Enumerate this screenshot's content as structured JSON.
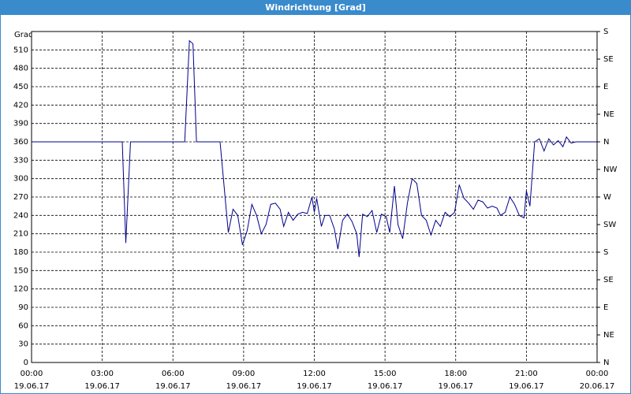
{
  "chart_data": {
    "type": "line",
    "title": "Windrichtung [Grad]",
    "y_label": "Grad",
    "x": [
      0,
      3.85,
      4.0,
      4.2,
      6.5,
      6.7,
      6.85,
      7.0,
      8.0,
      8.35,
      8.55,
      8.75,
      8.95,
      9.15,
      9.35,
      9.55,
      9.75,
      9.95,
      10.15,
      10.35,
      10.55,
      10.7,
      10.9,
      11.1,
      11.3,
      11.5,
      11.7,
      11.9,
      12.0,
      12.1,
      12.3,
      12.45,
      12.65,
      12.85,
      13.0,
      13.2,
      13.4,
      13.6,
      13.8,
      13.9,
      14.05,
      14.25,
      14.45,
      14.65,
      14.85,
      15.05,
      15.2,
      15.4,
      15.55,
      15.75,
      15.95,
      16.15,
      16.35,
      16.55,
      16.75,
      16.95,
      17.15,
      17.35,
      17.55,
      17.75,
      17.95,
      18.15,
      18.35,
      18.55,
      18.75,
      18.95,
      19.15,
      19.35,
      19.55,
      19.75,
      19.9,
      20.1,
      20.3,
      20.5,
      20.7,
      20.9,
      21.0,
      21.15,
      21.35,
      21.55,
      21.75,
      21.95,
      22.15,
      22.35,
      22.55,
      22.7,
      22.9,
      23.1,
      24
    ],
    "series": [
      {
        "name": "Windrichtung",
        "color": "#00008b",
        "values": [
          360,
          360,
          195,
          360,
          360,
          525,
          520,
          360,
          360,
          212,
          250,
          240,
          192,
          215,
          258,
          240,
          210,
          225,
          258,
          260,
          250,
          222,
          245,
          232,
          242,
          245,
          243,
          270,
          245,
          268,
          222,
          240,
          240,
          218,
          185,
          232,
          242,
          230,
          210,
          172,
          242,
          238,
          248,
          212,
          242,
          238,
          212,
          288,
          225,
          202,
          260,
          300,
          292,
          240,
          232,
          208,
          232,
          222,
          245,
          238,
          245,
          290,
          268,
          260,
          250,
          265,
          262,
          252,
          255,
          252,
          240,
          245,
          270,
          258,
          240,
          236,
          280,
          255,
          360,
          365,
          345,
          365,
          355,
          362,
          352,
          368,
          358,
          360,
          360
        ]
      }
    ],
    "xlim": [
      0,
      24
    ],
    "xticks": [
      {
        "value": 0,
        "label": "00:00"
      },
      {
        "value": 3,
        "label": "03:00"
      },
      {
        "value": 6,
        "label": "06:00"
      },
      {
        "value": 9,
        "label": "09:00"
      },
      {
        "value": 12,
        "label": "12:00"
      },
      {
        "value": 15,
        "label": "15:00"
      },
      {
        "value": 18,
        "label": "18:00"
      },
      {
        "value": 21,
        "label": "21:00"
      },
      {
        "value": 24,
        "label": "00:00"
      }
    ],
    "xtick_dates": [
      "19.06.17",
      "19.06.17",
      "19.06.17",
      "19.06.17",
      "19.06.17",
      "19.06.17",
      "19.06.17",
      "19.06.17",
      "20.06.17"
    ],
    "ylim": [
      0,
      540
    ],
    "yticks": [
      0,
      30,
      60,
      90,
      120,
      150,
      180,
      210,
      240,
      270,
      300,
      330,
      360,
      390,
      420,
      450,
      480,
      510
    ],
    "y2lim": [
      0,
      540
    ],
    "y2ticks": [
      {
        "value": 540,
        "label": "S"
      },
      {
        "value": 495,
        "label": "SE"
      },
      {
        "value": 450,
        "label": "E"
      },
      {
        "value": 405,
        "label": "NE"
      },
      {
        "value": 360,
        "label": "N"
      },
      {
        "value": 315,
        "label": "NW"
      },
      {
        "value": 270,
        "label": "W"
      },
      {
        "value": 225,
        "label": "SW"
      },
      {
        "value": 180,
        "label": "S"
      },
      {
        "value": 135,
        "label": "SE"
      },
      {
        "value": 90,
        "label": "E"
      },
      {
        "value": 45,
        "label": "NE"
      },
      {
        "value": 0,
        "label": "N"
      }
    ],
    "grid": true
  }
}
